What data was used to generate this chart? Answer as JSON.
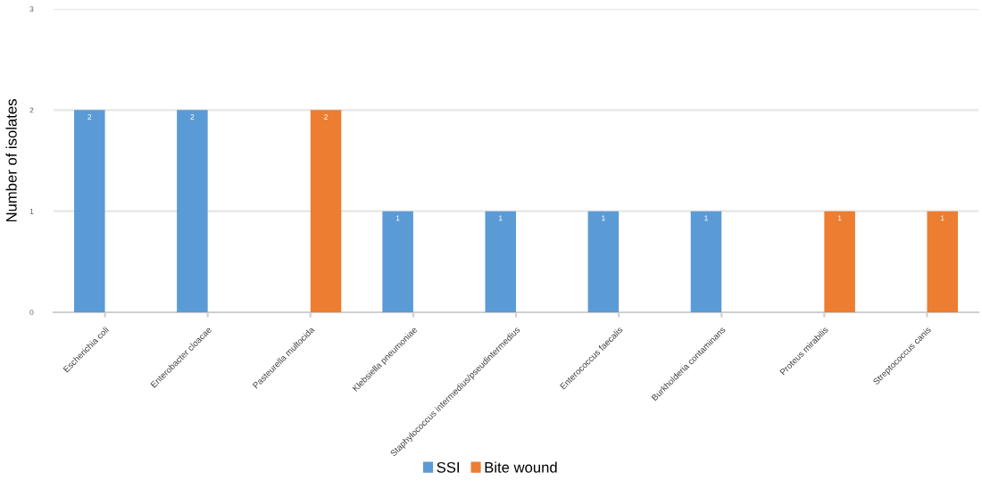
{
  "chart_data": {
    "type": "bar",
    "ylabel": "Number of isolates",
    "categories": [
      "Escherichia coli",
      "Enterobacter cloacae",
      "Pasteurella multocida",
      "Klebsiella pneumoniae",
      "Staphylococcus intermedius/pseudintermedius",
      "Enterococcus faecalis",
      "Burkholderia contaminans",
      "Proteus mirabilis",
      "Streptococcus canis"
    ],
    "series": [
      {
        "name": "SSI",
        "color": "#5b9bd5",
        "values": [
          2,
          2,
          null,
          1,
          1,
          1,
          1,
          null,
          null
        ]
      },
      {
        "name": "Bite wound",
        "color": "#ed7d31",
        "values": [
          null,
          null,
          2,
          null,
          null,
          null,
          null,
          1,
          1
        ]
      }
    ],
    "ylim": [
      0,
      3
    ],
    "yticks": [
      0,
      1,
      2,
      3
    ],
    "grid": "y",
    "legend": "bottom",
    "data_labels": true
  }
}
